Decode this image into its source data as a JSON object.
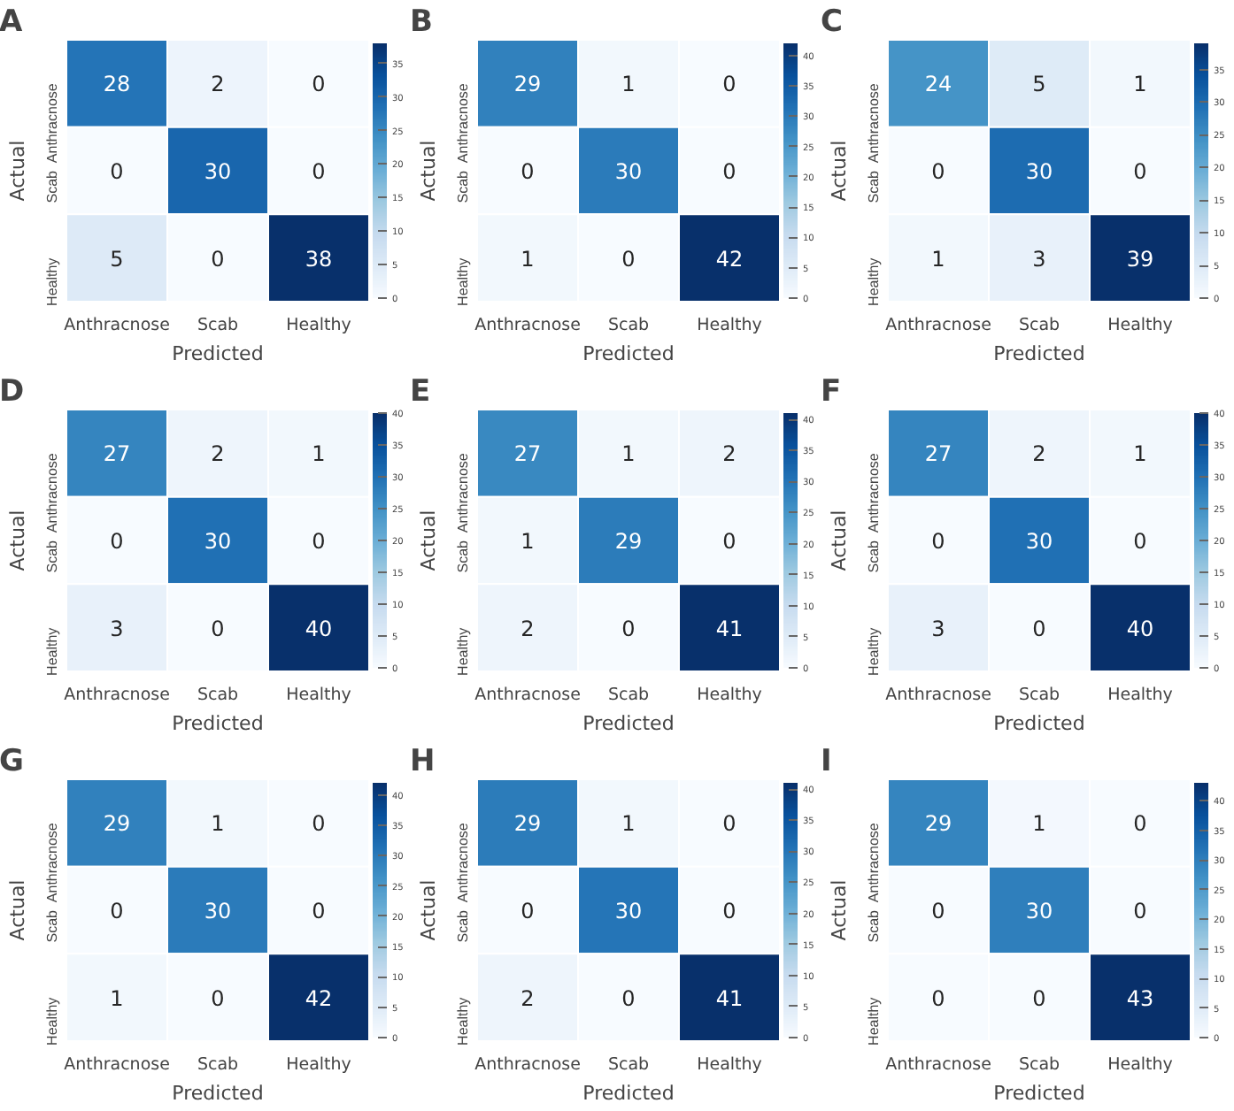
{
  "chart_data": [
    {
      "type": "heatmap",
      "title": "A",
      "xlabel": "Predicted",
      "ylabel": "Actual",
      "categories": [
        "Anthracnose",
        "Scab",
        "Healthy"
      ],
      "y_categories": [
        "Anthracnose",
        "Scab",
        "Healthy"
      ],
      "cells": [
        [
          28,
          2,
          0
        ],
        [
          0,
          30,
          0
        ],
        [
          5,
          0,
          38
        ]
      ],
      "clim": [
        0,
        38
      ],
      "cticks": [
        0,
        5,
        10,
        15,
        20,
        25,
        30,
        35
      ],
      "data_labels": true
    },
    {
      "type": "heatmap",
      "title": "B",
      "xlabel": "Predicted",
      "ylabel": "Actual",
      "categories": [
        "Anthracnose",
        "Scab",
        "Healthy"
      ],
      "y_categories": [
        "Anthracnose",
        "Scab",
        "Healthy"
      ],
      "cells": [
        [
          29,
          1,
          0
        ],
        [
          0,
          30,
          0
        ],
        [
          1,
          0,
          42
        ]
      ],
      "clim": [
        0,
        42
      ],
      "cticks": [
        0,
        5,
        10,
        15,
        20,
        25,
        30,
        35,
        40
      ],
      "data_labels": true
    },
    {
      "type": "heatmap",
      "title": "C",
      "xlabel": "Predicted",
      "ylabel": "Actual",
      "categories": [
        "Anthracnose",
        "Scab",
        "Healthy"
      ],
      "y_categories": [
        "Anthracnose",
        "Scab",
        "Healthy"
      ],
      "cells": [
        [
          24,
          5,
          1
        ],
        [
          0,
          30,
          0
        ],
        [
          1,
          3,
          39
        ]
      ],
      "clim": [
        0,
        39
      ],
      "cticks": [
        0,
        5,
        10,
        15,
        20,
        25,
        30,
        35
      ],
      "data_labels": true
    },
    {
      "type": "heatmap",
      "title": "D",
      "xlabel": "Predicted",
      "ylabel": "Actual",
      "categories": [
        "Anthracnose",
        "Scab",
        "Healthy"
      ],
      "y_categories": [
        "Anthracnose",
        "Scab",
        "Healthy"
      ],
      "cells": [
        [
          27,
          2,
          1
        ],
        [
          0,
          30,
          0
        ],
        [
          3,
          0,
          40
        ]
      ],
      "clim": [
        0,
        40
      ],
      "cticks": [
        0,
        5,
        10,
        15,
        20,
        25,
        30,
        35,
        40
      ],
      "data_labels": true
    },
    {
      "type": "heatmap",
      "title": "E",
      "xlabel": "Predicted",
      "ylabel": "Actual",
      "categories": [
        "Anthracnose",
        "Scab",
        "Healthy"
      ],
      "y_categories": [
        "Anthracnose",
        "Scab",
        "Healthy"
      ],
      "cells": [
        [
          27,
          1,
          2
        ],
        [
          1,
          29,
          0
        ],
        [
          2,
          0,
          41
        ]
      ],
      "clim": [
        0,
        41
      ],
      "cticks": [
        0,
        5,
        10,
        15,
        20,
        25,
        30,
        35,
        40
      ],
      "data_labels": true
    },
    {
      "type": "heatmap",
      "title": "F",
      "xlabel": "Predicted",
      "ylabel": "Actual",
      "categories": [
        "Anthracnose",
        "Scab",
        "Healthy"
      ],
      "y_categories": [
        "Anthracnose",
        "Scab",
        "Healthy"
      ],
      "cells": [
        [
          27,
          2,
          1
        ],
        [
          0,
          30,
          0
        ],
        [
          3,
          0,
          40
        ]
      ],
      "clim": [
        0,
        40
      ],
      "cticks": [
        0,
        5,
        10,
        15,
        20,
        25,
        30,
        35,
        40
      ],
      "data_labels": true
    },
    {
      "type": "heatmap",
      "title": "G",
      "xlabel": "Predicted",
      "ylabel": "Actual",
      "categories": [
        "Anthracnose",
        "Scab",
        "Healthy"
      ],
      "y_categories": [
        "Anthracnose",
        "Scab",
        "Healthy"
      ],
      "cells": [
        [
          29,
          1,
          0
        ],
        [
          0,
          30,
          0
        ],
        [
          1,
          0,
          42
        ]
      ],
      "clim": [
        0,
        42
      ],
      "cticks": [
        0,
        5,
        10,
        15,
        20,
        25,
        30,
        35,
        40
      ],
      "data_labels": true
    },
    {
      "type": "heatmap",
      "title": "H",
      "xlabel": "Predicted",
      "ylabel": "Actual",
      "categories": [
        "Anthracnose",
        "Scab",
        "Healthy"
      ],
      "y_categories": [
        "Anthracnose",
        "Scab",
        "Healthy"
      ],
      "cells": [
        [
          29,
          1,
          0
        ],
        [
          0,
          30,
          0
        ],
        [
          2,
          0,
          41
        ]
      ],
      "clim": [
        0,
        41
      ],
      "cticks": [
        0,
        5,
        10,
        15,
        20,
        25,
        30,
        35,
        40
      ],
      "data_labels": true
    },
    {
      "type": "heatmap",
      "title": "I",
      "xlabel": "Predicted",
      "ylabel": "Actual",
      "categories": [
        "Anthracnose",
        "Scab",
        "Healthy"
      ],
      "y_categories": [
        "Anthracnose",
        "Scab",
        "Healthy"
      ],
      "cells": [
        [
          29,
          1,
          0
        ],
        [
          0,
          30,
          0
        ],
        [
          0,
          0,
          43
        ]
      ],
      "clim": [
        0,
        43
      ],
      "cticks": [
        0,
        5,
        10,
        15,
        20,
        25,
        30,
        35,
        40
      ],
      "data_labels": true
    }
  ]
}
